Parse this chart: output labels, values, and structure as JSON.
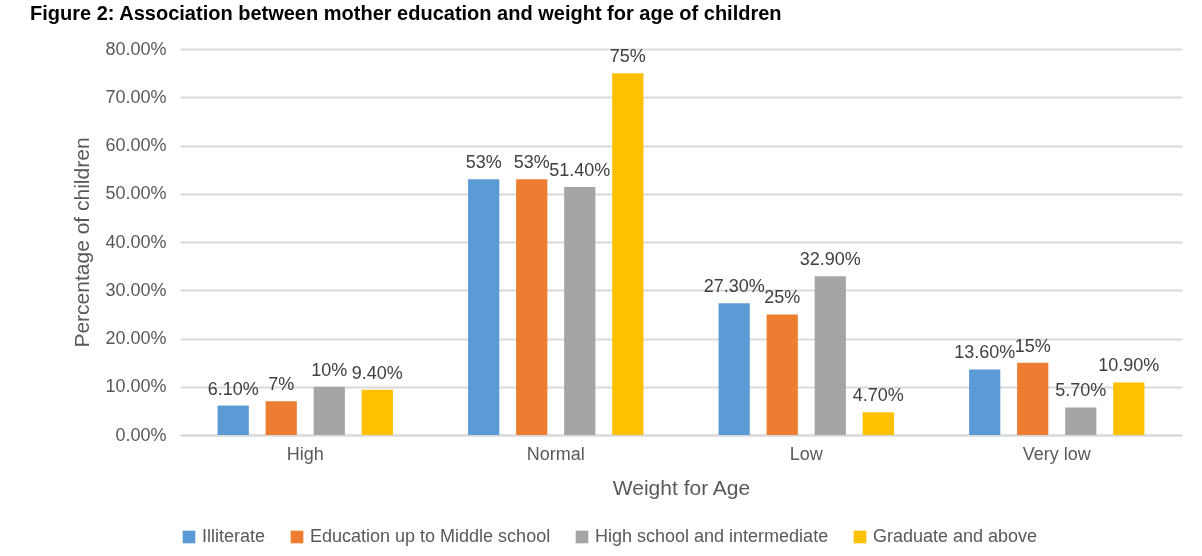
{
  "chart_data": {
    "type": "bar",
    "title": "Figure 2: Association between mother education and weight for age of children",
    "xlabel": "Weight for Age",
    "ylabel": "Percentage of children",
    "categories": [
      "High",
      "Normal",
      "Low",
      "Very low"
    ],
    "series": [
      {
        "name": "Illiterate",
        "color": "#5b9bd5",
        "values": [
          6.1,
          53,
          27.3,
          13.6
        ],
        "value_labels": [
          "6.10%",
          "53%",
          "27.30%",
          "13.60%"
        ]
      },
      {
        "name": "Education up to Middle school",
        "color": "#ed7d31",
        "values": [
          7,
          53,
          25,
          15
        ],
        "value_labels": [
          "7%",
          "53%",
          "25%",
          "15%"
        ]
      },
      {
        "name": "High school and intermediate",
        "color": "#a5a5a5",
        "values": [
          10,
          51.4,
          32.9,
          5.7
        ],
        "value_labels": [
          "10%",
          "51.40%",
          "32.90%",
          "5.70%"
        ]
      },
      {
        "name": "Graduate and above",
        "color": "#ffc000",
        "values": [
          9.4,
          75,
          4.7,
          10.9
        ],
        "value_labels": [
          "9.40%",
          "75%",
          "4.70%",
          "10.90%"
        ]
      }
    ],
    "ylim": [
      0,
      80
    ],
    "yticks": [
      {
        "value": 0,
        "label": "0.00%"
      },
      {
        "value": 10,
        "label": "10.00%"
      },
      {
        "value": 20,
        "label": "20.00%"
      },
      {
        "value": 30,
        "label": "30.00%"
      },
      {
        "value": 40,
        "label": "40.00%"
      },
      {
        "value": 50,
        "label": "50.00%"
      },
      {
        "value": 60,
        "label": "60.00%"
      },
      {
        "value": 70,
        "label": "70.00%"
      },
      {
        "value": 80,
        "label": "80.00%"
      }
    ],
    "grid": "y",
    "legend": "bottom"
  }
}
